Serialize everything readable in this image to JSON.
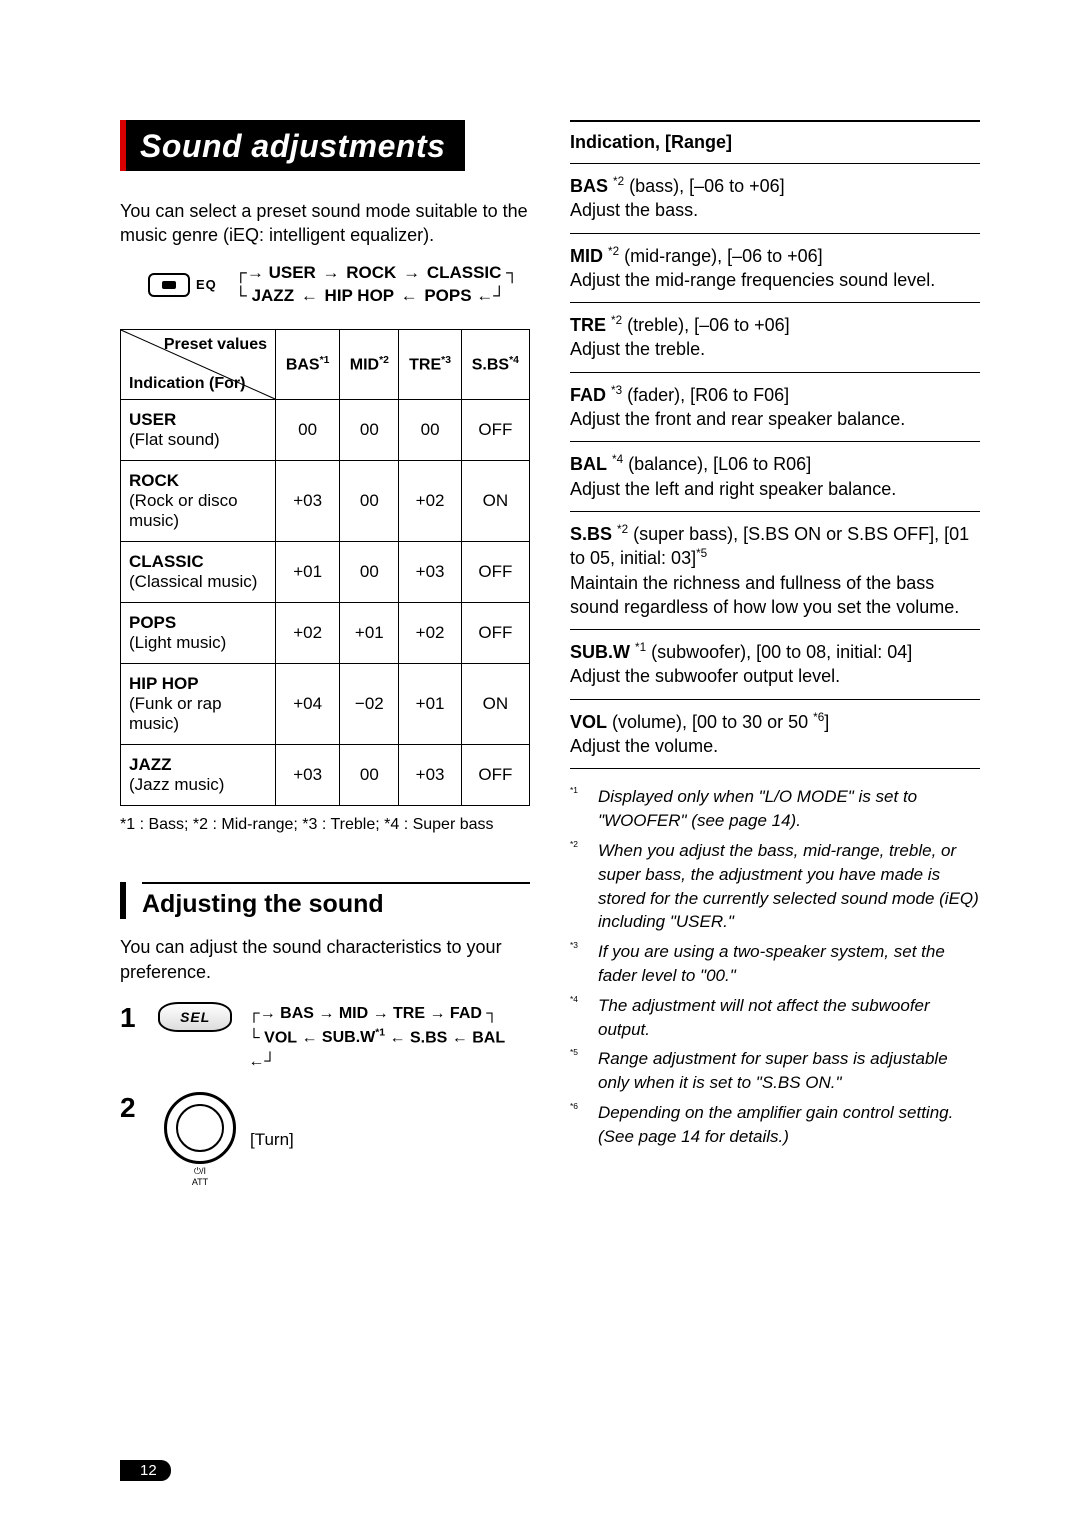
{
  "page_number": "12",
  "title": "Sound adjustments",
  "intro_text": "You can select a preset sound mode suitable to the music genre (iEQ: intelligent equalizer).",
  "eq_button_label": "EQ",
  "eq_cycle": {
    "line1": [
      "USER",
      "ROCK",
      "CLASSIC"
    ],
    "line2": [
      "JAZZ",
      "HIP HOP",
      "POPS"
    ]
  },
  "preset_table": {
    "diag_top": "Preset values",
    "diag_bottom": "Indication (For)",
    "columns": [
      {
        "label": "BAS",
        "sup": "*1"
      },
      {
        "label": "MID",
        "sup": "*2"
      },
      {
        "label": "TRE",
        "sup": "*3"
      },
      {
        "label": "S.BS",
        "sup": "*4"
      }
    ],
    "rows": [
      {
        "name": "USER",
        "desc": "(Flat sound)",
        "vals": [
          "00",
          "00",
          "00",
          "OFF"
        ]
      },
      {
        "name": "ROCK",
        "desc": "(Rock or disco music)",
        "vals": [
          "+03",
          "00",
          "+02",
          "ON"
        ]
      },
      {
        "name": "CLASSIC",
        "desc": "(Classical music)",
        "vals": [
          "+01",
          "00",
          "+03",
          "OFF"
        ]
      },
      {
        "name": "POPS",
        "desc": "(Light music)",
        "vals": [
          "+02",
          "+01",
          "+02",
          "OFF"
        ]
      },
      {
        "name": "HIP HOP",
        "desc": "(Funk or rap music)",
        "vals": [
          "+04",
          "−02",
          "+01",
          "ON"
        ]
      },
      {
        "name": "JAZZ",
        "desc": "(Jazz music)",
        "vals": [
          "+03",
          "00",
          "+03",
          "OFF"
        ]
      }
    ],
    "footnote": "*1 : Bass; *2 : Mid-range; *3 : Treble; *4 : Super bass"
  },
  "adjusting": {
    "heading": "Adjusting the sound",
    "intro": "You can adjust the sound characteristics to your preference.",
    "step1_num": "1",
    "sel_label": "SEL",
    "cycle_line1": [
      "BAS",
      "MID",
      "TRE",
      "FAD"
    ],
    "cycle_line2_left": "VOL",
    "cycle_line2_mid": {
      "text": "SUB.W",
      "sup": "*1"
    },
    "cycle_line2_right": [
      "S.BS",
      "BAL"
    ],
    "step2_num": "2",
    "att_label": "ATT",
    "power_symbol": "⏻",
    "turn_label": "[Turn]"
  },
  "indication": {
    "heading": "Indication, [Range]",
    "items": [
      {
        "name": "BAS",
        "sup": "*2",
        "range": " (bass), [–06 to +06]",
        "desc": "Adjust the bass."
      },
      {
        "name": "MID",
        "sup": "*2",
        "range": " (mid-range), [–06 to +06]",
        "desc": "Adjust the mid-range frequencies sound level."
      },
      {
        "name": "TRE",
        "sup": "*2",
        "range": " (treble), [–06 to +06]",
        "desc": "Adjust the treble."
      },
      {
        "name": "FAD",
        "sup": "*3",
        "range": " (fader), [R06 to F06]",
        "desc": "Adjust the front and rear speaker balance."
      },
      {
        "name": "BAL",
        "sup": "*4",
        "range": " (balance), [L06 to R06]",
        "desc": "Adjust the left and right speaker balance."
      },
      {
        "name": "S.BS",
        "sup": "*2",
        "range": " (super bass), [S.BS ON or S.BS OFF], [01 to 05, initial: 03]*5",
        "desc": "Maintain the richness and fullness of the bass sound regardless of how low you set the volume."
      },
      {
        "name": "SUB.W",
        "sup": "*1",
        "range": " (subwoofer), [00 to 08, initial: 04]",
        "desc": "Adjust the subwoofer output level."
      },
      {
        "name": "VOL",
        "sup": "",
        "range": " (volume), [00 to 30 or 50 *6]",
        "desc": "Adjust the volume."
      }
    ],
    "footnotes": [
      {
        "mk": "*1",
        "text": "Displayed only when \"L/O MODE\" is set to \"WOOFER\" (see page 14)."
      },
      {
        "mk": "*2",
        "text": "When you adjust the bass, mid-range, treble, or super bass, the adjustment you have made is stored for the currently selected sound mode (iEQ) including \"USER.\""
      },
      {
        "mk": "*3",
        "text": "If you are using a two-speaker system, set the fader level to \"00.\""
      },
      {
        "mk": "*4",
        "text": "The adjustment will not affect the subwoofer output."
      },
      {
        "mk": "*5",
        "text": "Range adjustment for super bass is adjustable only when it is set to \"S.BS ON.\""
      },
      {
        "mk": "*6",
        "text": "Depending on the amplifier gain control setting. (See page 14 for details.)"
      }
    ]
  }
}
